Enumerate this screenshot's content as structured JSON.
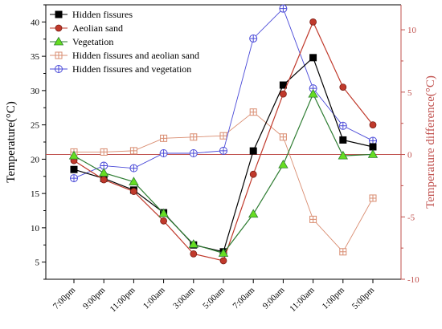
{
  "chart_data": {
    "type": "line",
    "categories": [
      "7:00pm",
      "9:00pm",
      "11:00pm",
      "1:00am",
      "3:00am",
      "5:00am",
      "7:00am",
      "9:00am",
      "11:00am",
      "1:00pm",
      "5:00pm"
    ],
    "xlabel": "",
    "y_left": {
      "label": "Temperature(°C)",
      "min": 2.5,
      "max": 42.5,
      "ticks": [
        5,
        10,
        15,
        20,
        25,
        30,
        35,
        40
      ],
      "color": "#000000"
    },
    "y_right": {
      "label": "Temperature difference(°C)",
      "min": -10,
      "max": 12,
      "ticks": [
        -10,
        -5,
        0,
        5,
        10
      ],
      "color": "#c0504d"
    },
    "zero_line_color": "#c0504d",
    "legend_position": "top-left",
    "series": [
      {
        "name": "Hidden fissures",
        "axis": "left",
        "marker": "square",
        "color": "#000000",
        "fill": "#000000",
        "values": [
          18.5,
          17.2,
          15.5,
          12.2,
          7.5,
          6.5,
          21.2,
          30.8,
          34.8,
          22.8,
          21.8
        ]
      },
      {
        "name": "Aeolian sand",
        "axis": "left",
        "marker": "circle",
        "color": "#c0392b",
        "fill": "#c0392b",
        "values": [
          19.8,
          17.0,
          15.3,
          11.0,
          6.2,
          5.2,
          17.8,
          29.5,
          40.0,
          30.5,
          25.0
        ]
      },
      {
        "name": "Vegetation",
        "axis": "left",
        "marker": "triangle",
        "color": "#2e7d32",
        "fill": "#66dd22",
        "values": [
          20.5,
          18.0,
          16.7,
          12.1,
          7.6,
          6.3,
          12.0,
          19.2,
          29.5,
          20.5,
          20.7
        ]
      },
      {
        "name": "Hidden fissures and aeolian sand",
        "axis": "right",
        "marker": "square-plus",
        "color": "#d98c70",
        "fill": "none",
        "values": [
          0.2,
          0.2,
          0.3,
          1.3,
          1.4,
          1.5,
          3.4,
          1.4,
          -5.2,
          -7.8,
          -3.5
        ]
      },
      {
        "name": "Hidden fissures and vegetation",
        "axis": "right",
        "marker": "circle-plus",
        "color": "#4a4ad8",
        "fill": "none",
        "values": [
          -1.9,
          -0.9,
          -1.1,
          0.1,
          0.1,
          0.3,
          9.3,
          11.7,
          5.3,
          2.3,
          1.1
        ]
      }
    ]
  }
}
